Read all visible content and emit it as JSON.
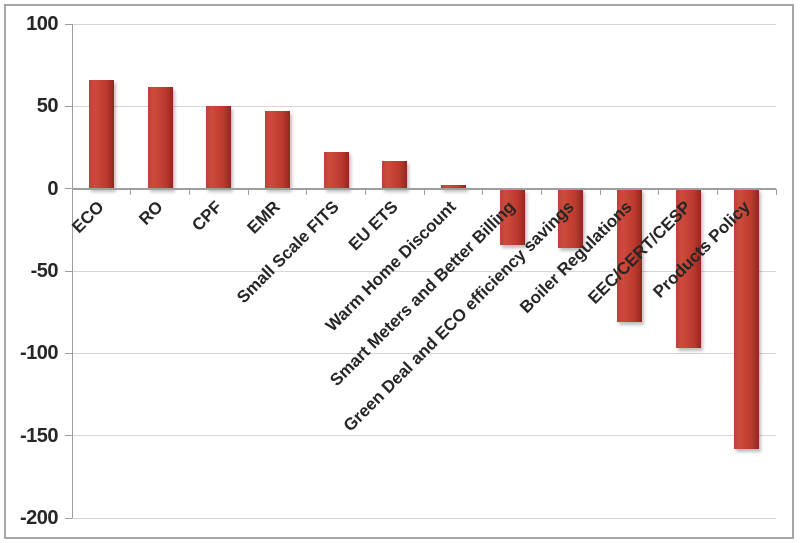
{
  "chart_data": {
    "type": "bar",
    "title": "",
    "xlabel": "",
    "ylabel": "",
    "categories": [
      "ECO",
      "RO",
      "CPF",
      "EMR",
      "Small Scale FITS",
      "EU ETS",
      "Warm Home Discount",
      "Smart Meters and Better Billing",
      "Green Deal and ECO efficiency savings",
      "Boiler Regulations",
      "EEC/CERT/CESP",
      "Products Policy"
    ],
    "values": [
      66,
      62,
      50,
      47,
      22,
      17,
      2,
      -34,
      -36,
      -81,
      -97,
      -158
    ],
    "ylim": [
      -200,
      100
    ],
    "yticks": [
      100,
      50,
      0,
      -50,
      -100,
      -150,
      -200
    ],
    "grid": true,
    "legend_position": "none",
    "colors": {
      "bar_main": "#c03a2e",
      "bar_gradient_left": "#b8433a",
      "bar_gradient_light": "#cd4b3c",
      "bar_gradient_mid": "#bd392e",
      "bar_gradient_right": "#93261f",
      "gridline": "#d6d6d6",
      "axis": "#9e9e9e",
      "text": "#262626",
      "frame": "#a6a6a6",
      "background": "#ffffff"
    }
  }
}
